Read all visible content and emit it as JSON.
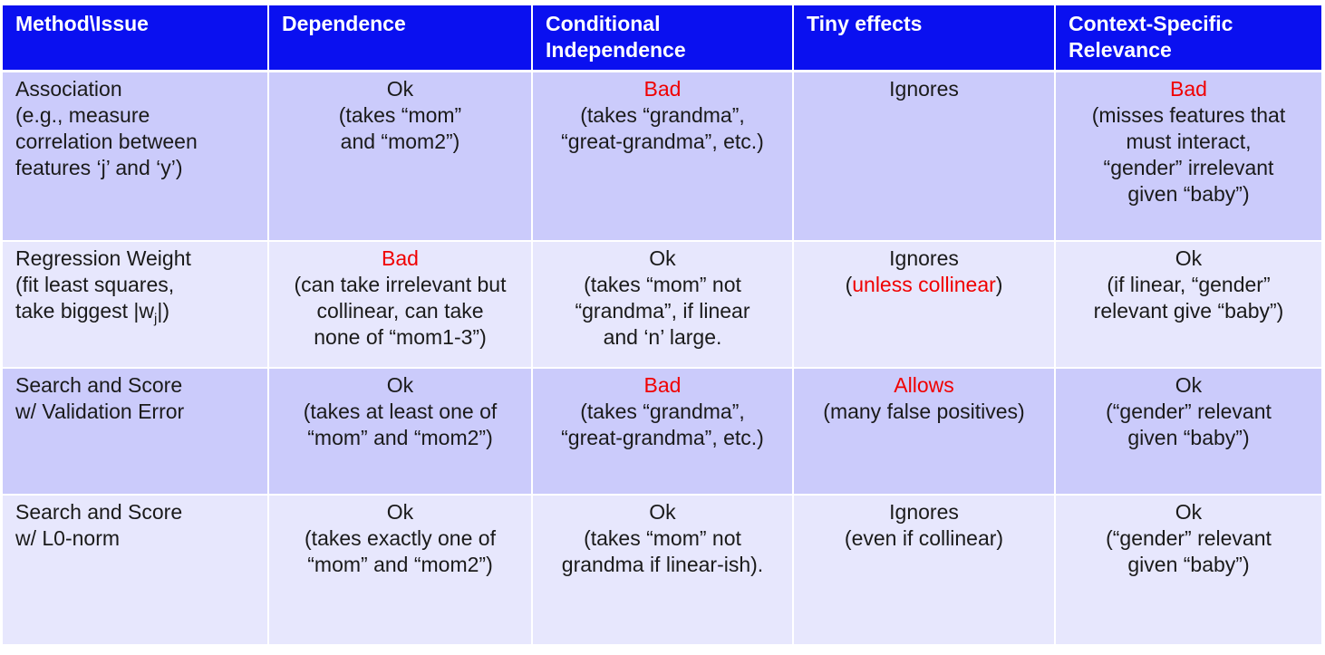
{
  "header": {
    "col1": "Method\\Issue",
    "col2": "Dependence",
    "col3_line1": "Conditional",
    "col3_line2": "Independence",
    "col4": "Tiny effects",
    "col5_line1": "Context-Specific",
    "col5_line2": "Relevance"
  },
  "rows": [
    {
      "method": [
        "Association",
        "(e.g., measure",
        "correlation between",
        "features ‘j’ and ‘y’)"
      ],
      "dependence": {
        "verdict": "Ok",
        "detail": [
          "(takes “mom”",
          "and “mom2”)"
        ]
      },
      "cond_indep": {
        "verdict": "Bad",
        "detail": [
          "(takes “grandma”,",
          "“great-grandma”, etc.)"
        ]
      },
      "tiny": {
        "verdict": "Ignores",
        "detail": []
      },
      "context": {
        "verdict": "Bad",
        "detail": [
          "(misses features that",
          "must interact,",
          "“gender” irrelevant",
          "given “baby”)"
        ]
      }
    },
    {
      "method": [
        "Regression Weight",
        "(fit least squares,",
        "take biggest |w",
        "j",
        "|)"
      ],
      "dependence": {
        "verdict": "Bad",
        "detail": [
          "(can take irrelevant but",
          "collinear, can take",
          "none of “mom1-3”)"
        ]
      },
      "cond_indep": {
        "verdict": "Ok",
        "detail": [
          "(takes “mom” not",
          "“grandma”, if linear",
          "and ‘n’ large."
        ]
      },
      "tiny": {
        "verdict": "Ignores",
        "detail_open": "(",
        "detail_red": "unless collinear",
        "detail_close": ")"
      },
      "context": {
        "verdict": "Ok",
        "detail": [
          "(if linear, “gender”",
          "relevant give “baby”)"
        ]
      }
    },
    {
      "method": [
        "Search and Score",
        "w/ Validation Error"
      ],
      "dependence": {
        "verdict": "Ok",
        "detail": [
          "(takes at least one of",
          "“mom” and “mom2”)"
        ]
      },
      "cond_indep": {
        "verdict": "Bad",
        "detail": [
          "(takes “grandma”,",
          "“great-grandma”, etc.)"
        ]
      },
      "tiny": {
        "verdict": "Allows",
        "detail": [
          "(many false positives)"
        ]
      },
      "context": {
        "verdict": "Ok",
        "detail": [
          "(“gender” relevant",
          "given “baby”)"
        ]
      }
    },
    {
      "method": [
        "Search and Score",
        "w/ L0-norm"
      ],
      "dependence": {
        "verdict": "Ok",
        "detail": [
          "(takes exactly one of",
          "“mom” and “mom2”)"
        ]
      },
      "cond_indep": {
        "verdict": "Ok",
        "detail": [
          "(takes “mom” not",
          "grandma if linear-ish)."
        ]
      },
      "tiny": {
        "verdict": "Ignores",
        "detail": [
          "(even if collinear)"
        ]
      },
      "context": {
        "verdict": "Ok",
        "detail": [
          "(“gender” relevant",
          "given “baby”)"
        ]
      }
    }
  ],
  "colors": {
    "header_bg": "#0a10f0",
    "row_dark": "#cbcbfb",
    "row_light": "#e7e7fd",
    "bad_red": "#f00000"
  }
}
